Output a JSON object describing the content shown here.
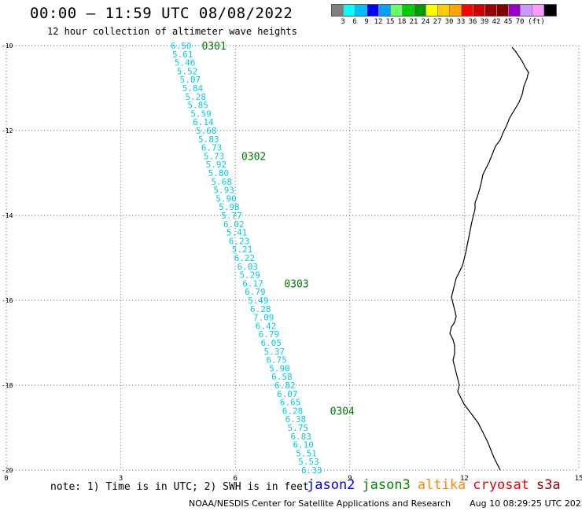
{
  "header": {
    "title": "00:00 – 11:59 UTC 08/08/2022",
    "subtitle": "12 hour collection of altimeter wave heights"
  },
  "legend": {
    "colors": [
      "#808080",
      "#00ffff",
      "#00bfff",
      "#0000ff",
      "#00a0ff",
      "#66ff66",
      "#00cc00",
      "#009900",
      "#ffff00",
      "#ffcc00",
      "#ffa500",
      "#ff0000",
      "#cc0000",
      "#990000",
      "#800000",
      "#9900cc",
      "#cc99ff",
      "#ff99ff",
      "#000000"
    ],
    "labels": [
      "3",
      "6",
      "9",
      "12",
      "15",
      "18",
      "21",
      "24",
      "27",
      "30",
      "33",
      "36",
      "39",
      "42",
      "45",
      "70",
      "(ft)"
    ]
  },
  "map": {
    "x_ticks": [
      "0",
      "3",
      "6",
      "9",
      "12",
      "15"
    ],
    "y_ticks": [
      "-10",
      "-12",
      "-14",
      "-16",
      "-18",
      "-20"
    ],
    "x_range": [
      0,
      15
    ],
    "y_range": [
      -20,
      -10
    ],
    "track_color": "#00ccdd",
    "label_color": "#007700",
    "readings": [
      {
        "v": "6.50",
        "x": 4.58,
        "y": -10.0
      },
      {
        "v": "5.61",
        "x": 4.62,
        "y": -10.2
      },
      {
        "v": "5.46",
        "x": 4.68,
        "y": -10.4
      },
      {
        "v": "5.52",
        "x": 4.74,
        "y": -10.6
      },
      {
        "v": "5.07",
        "x": 4.82,
        "y": -10.8
      },
      {
        "v": "5.84",
        "x": 4.88,
        "y": -11.0
      },
      {
        "v": "5.28",
        "x": 4.96,
        "y": -11.2
      },
      {
        "v": "5.85",
        "x": 5.02,
        "y": -11.4
      },
      {
        "v": "5.59",
        "x": 5.1,
        "y": -11.6
      },
      {
        "v": "6.14",
        "x": 5.16,
        "y": -11.8
      },
      {
        "v": "5.68",
        "x": 5.24,
        "y": -12.0
      },
      {
        "v": "5.83",
        "x": 5.3,
        "y": -12.2
      },
      {
        "v": "6.73",
        "x": 5.38,
        "y": -12.4
      },
      {
        "v": "5.73",
        "x": 5.44,
        "y": -12.6
      },
      {
        "v": "5.92",
        "x": 5.5,
        "y": -12.8
      },
      {
        "v": "5.80",
        "x": 5.56,
        "y": -13.0
      },
      {
        "v": "5.68",
        "x": 5.64,
        "y": -13.2
      },
      {
        "v": "5.93",
        "x": 5.7,
        "y": -13.4
      },
      {
        "v": "5.90",
        "x": 5.76,
        "y": -13.6
      },
      {
        "v": "5.98",
        "x": 5.84,
        "y": -13.8
      },
      {
        "v": "5.77",
        "x": 5.9,
        "y": -14.0
      },
      {
        "v": "6.02",
        "x": 5.96,
        "y": -14.2
      },
      {
        "v": "5.41",
        "x": 6.04,
        "y": -14.4
      },
      {
        "v": "6.23",
        "x": 6.1,
        "y": -14.6
      },
      {
        "v": "5.21",
        "x": 6.18,
        "y": -14.8
      },
      {
        "v": "6.22",
        "x": 6.24,
        "y": -15.0
      },
      {
        "v": "6.03",
        "x": 6.32,
        "y": -15.2
      },
      {
        "v": "5.29",
        "x": 6.38,
        "y": -15.4
      },
      {
        "v": "6.17",
        "x": 6.46,
        "y": -15.6
      },
      {
        "v": "6.79",
        "x": 6.52,
        "y": -15.8
      },
      {
        "v": "5.49",
        "x": 6.6,
        "y": -16.0
      },
      {
        "v": "6.28",
        "x": 6.66,
        "y": -16.2
      },
      {
        "v": "7.09",
        "x": 6.74,
        "y": -16.4
      },
      {
        "v": "6.42",
        "x": 6.8,
        "y": -16.6
      },
      {
        "v": "6.79",
        "x": 6.88,
        "y": -16.8
      },
      {
        "v": "6.05",
        "x": 6.94,
        "y": -17.0
      },
      {
        "v": "5.37",
        "x": 7.02,
        "y": -17.2
      },
      {
        "v": "6.75",
        "x": 7.08,
        "y": -17.4
      },
      {
        "v": "5.90",
        "x": 7.16,
        "y": -17.6
      },
      {
        "v": "6.58",
        "x": 7.22,
        "y": -17.8
      },
      {
        "v": "6.82",
        "x": 7.3,
        "y": -18.0
      },
      {
        "v": "6.07",
        "x": 7.36,
        "y": -18.2
      },
      {
        "v": "6.65",
        "x": 7.44,
        "y": -18.4
      },
      {
        "v": "6.28",
        "x": 7.5,
        "y": -18.6
      },
      {
        "v": "6.38",
        "x": 7.58,
        "y": -18.8
      },
      {
        "v": "5.75",
        "x": 7.64,
        "y": -19.0
      },
      {
        "v": "6.83",
        "x": 7.72,
        "y": -19.2
      },
      {
        "v": "6.10",
        "x": 7.78,
        "y": -19.4
      },
      {
        "v": "5.51",
        "x": 7.86,
        "y": -19.6
      },
      {
        "v": "5.53",
        "x": 7.92,
        "y": -19.8
      },
      {
        "v": "6.33",
        "x": 8.0,
        "y": -20.0
      }
    ],
    "time_labels": [
      {
        "t": "0301",
        "x": 5.12,
        "y": -10.0
      },
      {
        "t": "0302",
        "x": 6.16,
        "y": -12.6
      },
      {
        "t": "0303",
        "x": 7.28,
        "y": -15.6
      },
      {
        "t": "0304",
        "x": 8.48,
        "y": -18.6
      }
    ]
  },
  "note": "note: 1) Time is in UTC; 2) SWH is in feet",
  "satellites": [
    {
      "name": "jason2",
      "color": "#0000dd"
    },
    {
      "name": "jason3",
      "color": "#008800"
    },
    {
      "name": "altika",
      "color": "#ff8800"
    },
    {
      "name": "cryosat",
      "color": "#ee0000"
    },
    {
      "name": "s3a",
      "color": "#990000"
    }
  ],
  "footer": {
    "credit": "NOAA/NESDIS Center for Satellite Applications and Research",
    "timestamp": "Aug 10 08:29:25 UTC 2022"
  }
}
